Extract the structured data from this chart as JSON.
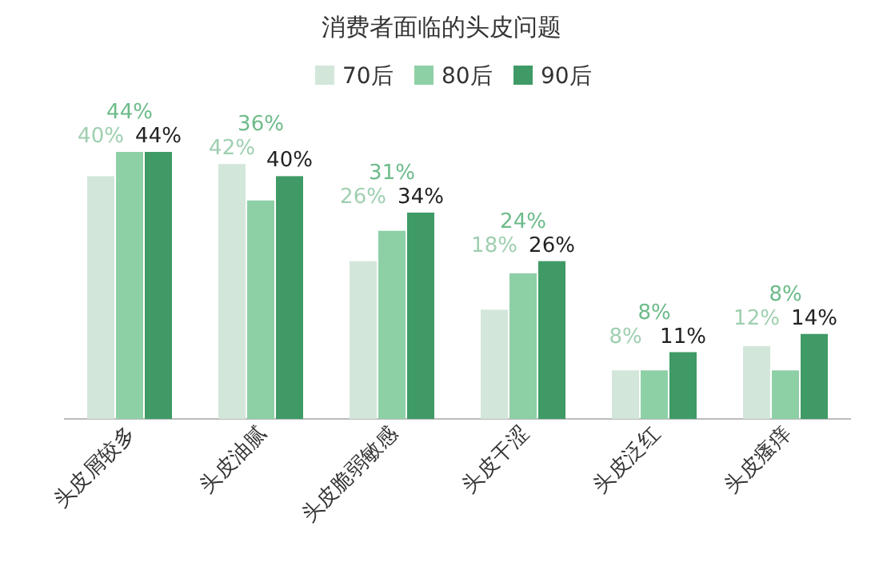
{
  "chart_data": {
    "type": "bar",
    "title": "消费者面临的头皮问题",
    "categories": [
      "头皮屑较多",
      "头皮油腻",
      "头皮脆弱敏感",
      "头皮干涩",
      "头皮泛红",
      "头皮瘙痒"
    ],
    "series": [
      {
        "name": "70后",
        "color": "#d3e6da",
        "values": [
          40,
          42,
          26,
          18,
          8,
          12
        ],
        "value_labels": [
          "40%",
          "42%",
          "26%",
          "18%",
          "8%",
          "12%"
        ]
      },
      {
        "name": "80后",
        "color": "#8ed0a6",
        "values": [
          44,
          36,
          31,
          24,
          8,
          8
        ],
        "value_labels": [
          "44%",
          "36%",
          "31%",
          "24%",
          "8%",
          "8%"
        ]
      },
      {
        "name": "90后",
        "color": "#3f9a66",
        "values": [
          44,
          40,
          34,
          26,
          11,
          14
        ],
        "value_labels": [
          "44%",
          "40%",
          "34%",
          "26%",
          "11%",
          "14%"
        ]
      }
    ],
    "legend": "top"
  }
}
